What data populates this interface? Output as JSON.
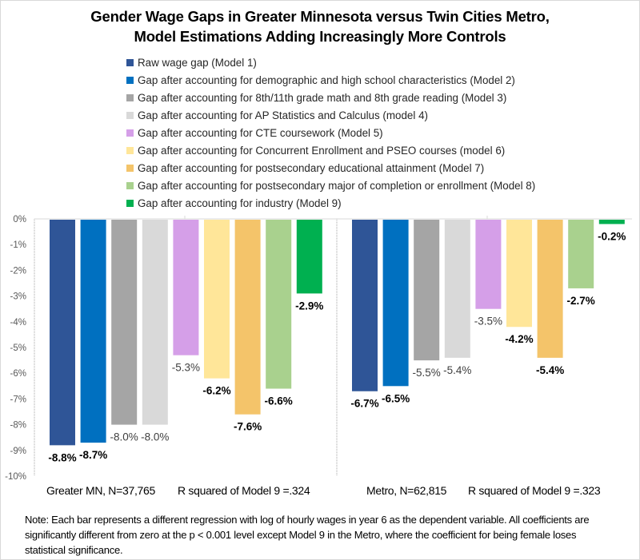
{
  "chart_data": {
    "type": "bar",
    "title": "Gender Wage Gaps in Greater Minnesota versus Twin Cities Metro,",
    "subtitle": "Model Estimations Adding Increasingly More Controls",
    "xlabel": "",
    "ylabel": "",
    "ylim": [
      -10,
      0
    ],
    "yticks": [
      0,
      -1,
      -2,
      -3,
      -4,
      -5,
      -6,
      -7,
      -8,
      -9,
      -10
    ],
    "ytick_labels": [
      "0%",
      "-1%",
      "-2%",
      "-3%",
      "-4%",
      "-5%",
      "-6%",
      "-7%",
      "-8%",
      "-9%",
      "-10%"
    ],
    "grid": false,
    "legend_position": "top",
    "categories": [
      "Greater MN, N=37,765    R squared of Model 9 =.324",
      "Metro, N=62,815    R squared of Model 9 =.323"
    ],
    "series": [
      {
        "name": "Raw wage gap (Model 1)",
        "color": "#2F5597",
        "values": [
          -8.8,
          -6.7
        ],
        "labels": [
          "-8.8%",
          "-6.7%"
        ],
        "label_bold": true
      },
      {
        "name": "Gap after accounting for demographic and high school characteristics (Model 2)",
        "color": "#0070C0",
        "values": [
          -8.7,
          -6.5
        ],
        "labels": [
          "-8.7%",
          "-6.5%"
        ],
        "label_bold": true
      },
      {
        "name": "Gap after accounting for 8th/11th grade math and 8th grade reading (Model 3)",
        "color": "#A5A5A5",
        "values": [
          -8.0,
          -5.5
        ],
        "labels": [
          "-8.0%",
          "-5.5%"
        ],
        "label_bold": false
      },
      {
        "name": "Gap after accounting for AP Statistics and Calculus (model 4)",
        "color": "#D9D9D9",
        "values": [
          -8.0,
          -5.4
        ],
        "labels": [
          "-8.0%",
          "-5.4%"
        ],
        "label_bold": false
      },
      {
        "name": "Gap after accounting for CTE coursework (Model 5)",
        "color": "#D59FE8",
        "values": [
          -5.3,
          -3.5
        ],
        "labels": [
          "-5.3%",
          "-3.5%"
        ],
        "label_bold": false
      },
      {
        "name": "Gap after accounting for Concurrent Enrollment and PSEO courses (model 6)",
        "color": "#FFE699",
        "values": [
          -6.2,
          -4.2
        ],
        "labels": [
          "-6.2%",
          "-4.2%"
        ],
        "label_bold": true
      },
      {
        "name": "Gap after accounting for postsecondary educational attainment (Model 7)",
        "color": "#F4C46A",
        "values": [
          -7.6,
          -5.4
        ],
        "labels": [
          "-7.6%",
          "-5.4%"
        ],
        "label_bold": true
      },
      {
        "name": "Gap after accounting for postsecondary major of completion or enrollment (Model 8)",
        "color": "#A9D18E",
        "values": [
          -6.6,
          -2.7
        ],
        "labels": [
          "-6.6%",
          "-2.7%"
        ],
        "label_bold": true
      },
      {
        "name": "Gap after accounting for industry (Model 9)",
        "color": "#00B050",
        "values": [
          -2.9,
          -0.2
        ],
        "labels": [
          "-2.9%",
          "-0.2%"
        ],
        "label_bold": true
      }
    ],
    "note": "Note: Each bar represents a different regression with log of hourly wages in year 6 as the dependent variable. All coefficients are significantly different from zero at the p < 0.001 level except Model 9 in the Metro, where the coefficient for being female loses statistical significance."
  },
  "category_labels": {
    "greater_mn": "Greater MN, N=37,765",
    "greater_mn_r2": "R squared of Model 9 =.324",
    "metro": "Metro, N=62,815",
    "metro_r2": "R squared of Model 9 =.323"
  }
}
